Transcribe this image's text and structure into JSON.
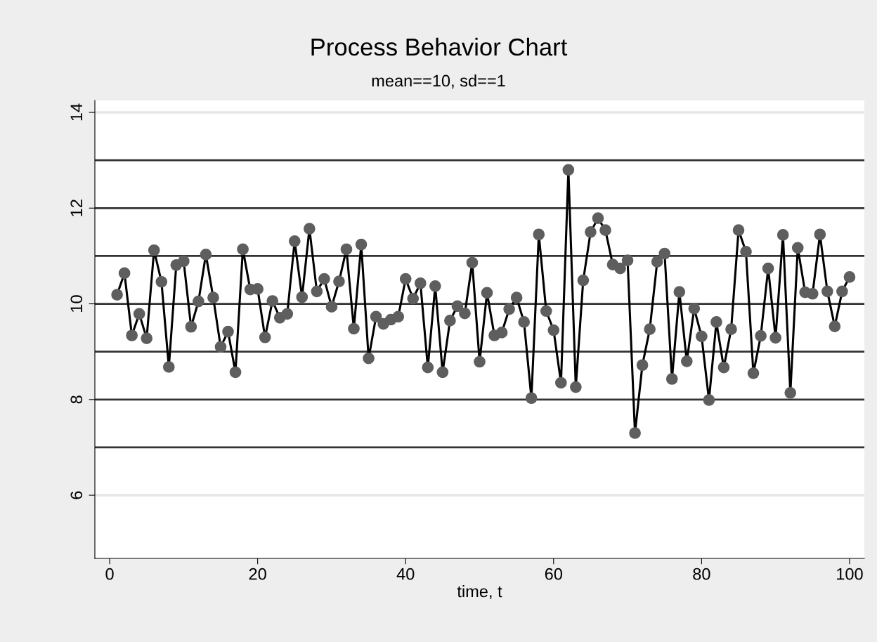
{
  "chart_data": {
    "type": "line",
    "title": "Process Behavior Chart",
    "subtitle": "mean==10, sd==1",
    "xlabel": "time, t",
    "x": [
      1,
      2,
      3,
      4,
      5,
      6,
      7,
      8,
      9,
      10,
      11,
      12,
      13,
      14,
      15,
      16,
      17,
      18,
      19,
      20,
      21,
      22,
      23,
      24,
      25,
      26,
      27,
      28,
      29,
      30,
      31,
      32,
      33,
      34,
      35,
      36,
      37,
      38,
      39,
      40,
      41,
      42,
      43,
      44,
      45,
      46,
      47,
      48,
      49,
      50,
      51,
      52,
      53,
      54,
      55,
      56,
      57,
      58,
      59,
      60,
      61,
      62,
      63,
      64,
      65,
      66,
      67,
      68,
      69,
      70,
      71,
      72,
      73,
      74,
      75,
      76,
      77,
      78,
      79,
      80,
      81,
      82,
      83,
      84,
      85,
      86,
      87,
      88,
      89,
      90,
      91,
      92,
      93,
      94,
      95,
      96,
      97,
      98,
      99,
      100
    ],
    "series": [
      {
        "color": "#000000",
        "values": [
          10.19,
          10.64,
          9.34,
          9.79,
          9.28,
          11.12,
          10.46,
          8.68,
          10.81,
          10.89,
          9.52,
          10.05,
          11.03,
          10.13,
          9.1,
          9.42,
          8.57,
          11.14,
          10.3,
          10.31,
          9.3,
          10.06,
          9.71,
          9.79,
          11.31,
          10.14,
          11.57,
          10.26,
          10.52,
          9.94,
          10.47,
          11.14,
          9.48,
          11.24,
          8.86,
          9.73,
          9.58,
          9.67,
          9.73,
          10.52,
          10.11,
          10.43,
          8.67,
          10.37,
          8.57,
          9.65,
          9.95,
          9.8,
          10.86,
          8.79,
          10.23,
          9.34,
          9.4,
          9.89,
          10.13,
          9.62,
          8.03,
          11.45,
          9.85,
          9.45,
          8.35,
          12.8,
          8.26,
          10.49,
          11.5,
          11.79,
          11.54,
          10.82,
          10.74,
          10.91,
          7.3,
          8.72,
          9.47,
          10.88,
          11.05,
          8.43,
          10.25,
          8.8,
          9.9,
          9.32,
          7.99,
          9.62,
          8.67,
          9.47,
          11.54,
          11.09,
          8.55,
          9.33,
          10.74,
          9.29,
          11.44,
          8.14,
          11.17,
          10.24,
          10.21,
          11.45,
          10.26,
          9.53,
          10.26,
          10.56
        ]
      }
    ],
    "xlim": [
      -2,
      102
    ],
    "xticks": [
      0,
      20,
      40,
      60,
      80,
      100
    ],
    "ylim": [
      4.68,
      14.25
    ],
    "yticks": [
      6,
      8,
      10,
      12,
      14
    ],
    "ref_lines": [
      {
        "axis": "y",
        "value": 7,
        "color": "#333333"
      },
      {
        "axis": "y",
        "value": 8,
        "color": "#333333"
      },
      {
        "axis": "y",
        "value": 9,
        "color": "#333333"
      },
      {
        "axis": "y",
        "value": 10,
        "color": "#333333"
      },
      {
        "axis": "y",
        "value": 11,
        "color": "#333333"
      },
      {
        "axis": "y",
        "value": 12,
        "color": "#333333"
      },
      {
        "axis": "y",
        "value": 13,
        "color": "#333333"
      }
    ],
    "grid": "y",
    "marker": "circle",
    "line_style": "solid",
    "legend": false
  }
}
